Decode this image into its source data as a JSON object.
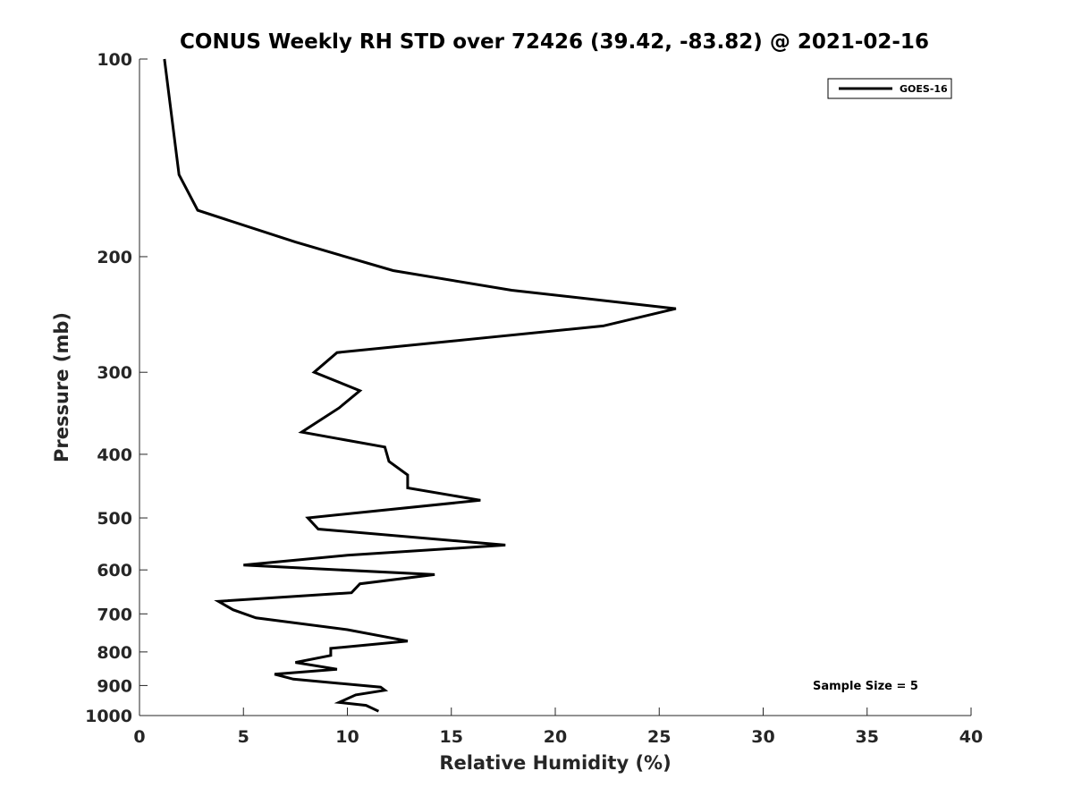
{
  "chart_data": {
    "type": "line",
    "title": "CONUS Weekly RH STD over 72426 (39.42, -83.82) @ 2021-02-16",
    "xlabel": "Relative Humidity (%)",
    "ylabel": "Pressure (mb)",
    "xlim": [
      0,
      40
    ],
    "ylim": [
      100,
      1000
    ],
    "y_scale": "log",
    "y_reversed": true,
    "grid": false,
    "x_ticks": [
      "0",
      "5",
      "10",
      "15",
      "20",
      "25",
      "30",
      "35",
      "40"
    ],
    "y_ticks": [
      "100",
      "200",
      "300",
      "400",
      "500",
      "600",
      "700",
      "800",
      "900",
      "1000"
    ],
    "legend_position": "top-right",
    "annotation": "Sample Size = 5",
    "line_color": "#000000",
    "series": [
      {
        "name": "GOES-16",
        "x": [
          1.2,
          1.9,
          2.8,
          7.5,
          12.2,
          17.9,
          25.8,
          22.3,
          9.5,
          8.4,
          10.6,
          9.6,
          7.8,
          11.8,
          12.0,
          12.9,
          12.9,
          16.4,
          8.1,
          8.6,
          17.6,
          10.0,
          5.0,
          14.2,
          10.6,
          10.2,
          3.8,
          4.5,
          5.6,
          10.0,
          12.9,
          9.2,
          9.2,
          7.5,
          9.5,
          6.5,
          7.4,
          11.6,
          11.8,
          10.4,
          9.6,
          10.9,
          11.5
        ],
        "y": [
          100,
          150,
          170,
          190,
          210,
          225,
          240,
          255,
          280,
          300,
          320,
          340,
          370,
          390,
          410,
          430,
          450,
          470,
          500,
          520,
          550,
          570,
          590,
          610,
          630,
          650,
          670,
          690,
          710,
          740,
          770,
          790,
          810,
          830,
          850,
          865,
          880,
          905,
          915,
          930,
          955,
          965,
          985
        ]
      }
    ]
  }
}
